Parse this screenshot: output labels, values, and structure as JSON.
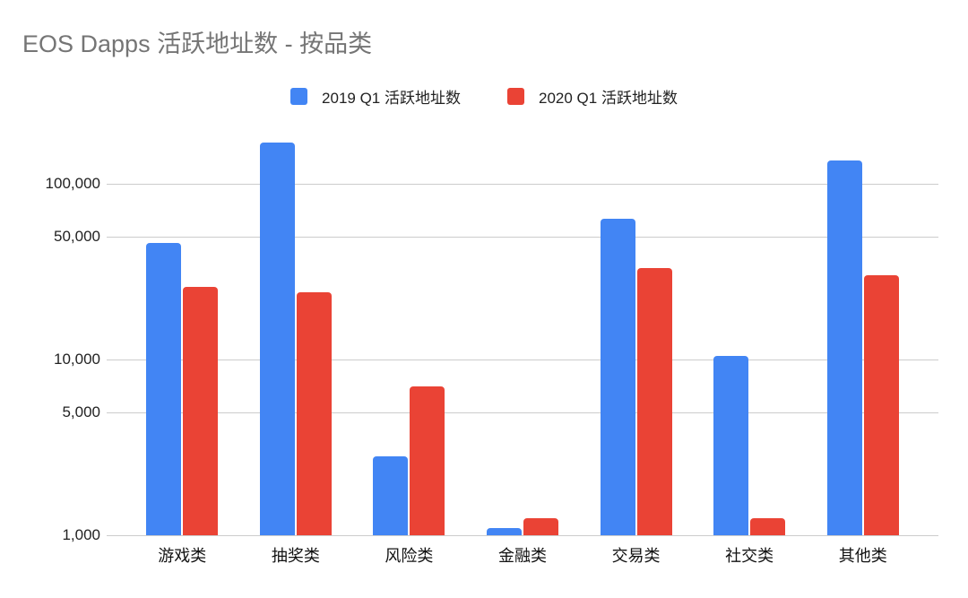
{
  "chart_data": {
    "type": "bar",
    "title": "EOS Dapps 活跃地址数 - 按品类",
    "title_color": "#757575",
    "categories": [
      "游戏类",
      "抽奖类",
      "风险类",
      "金融类",
      "交易类",
      "社交类",
      "其他类"
    ],
    "series": [
      {
        "name": "2019 Q1 活跃地址数",
        "color": "#4285F4",
        "values": [
          46000,
          172000,
          2800,
          1100,
          63000,
          10500,
          135000
        ]
      },
      {
        "name": "2020 Q1 活跃地址数",
        "color": "#EA4335",
        "values": [
          26000,
          24000,
          7000,
          1250,
          33000,
          1250,
          30000
        ]
      }
    ],
    "xlabel": "",
    "ylabel": "",
    "y_axis": {
      "scale": "log",
      "range": [
        1000,
        215000
      ],
      "ticks": [
        {
          "value": 1000,
          "label": "1,000"
        },
        {
          "value": 5000,
          "label": "5,000"
        },
        {
          "value": 10000,
          "label": "10,000"
        },
        {
          "value": 50000,
          "label": "50,000"
        },
        {
          "value": 100000,
          "label": "100,000"
        }
      ]
    },
    "grid": true,
    "legend_position": "top",
    "gridline_color": "#cccccc",
    "background_color": "#ffffff"
  }
}
